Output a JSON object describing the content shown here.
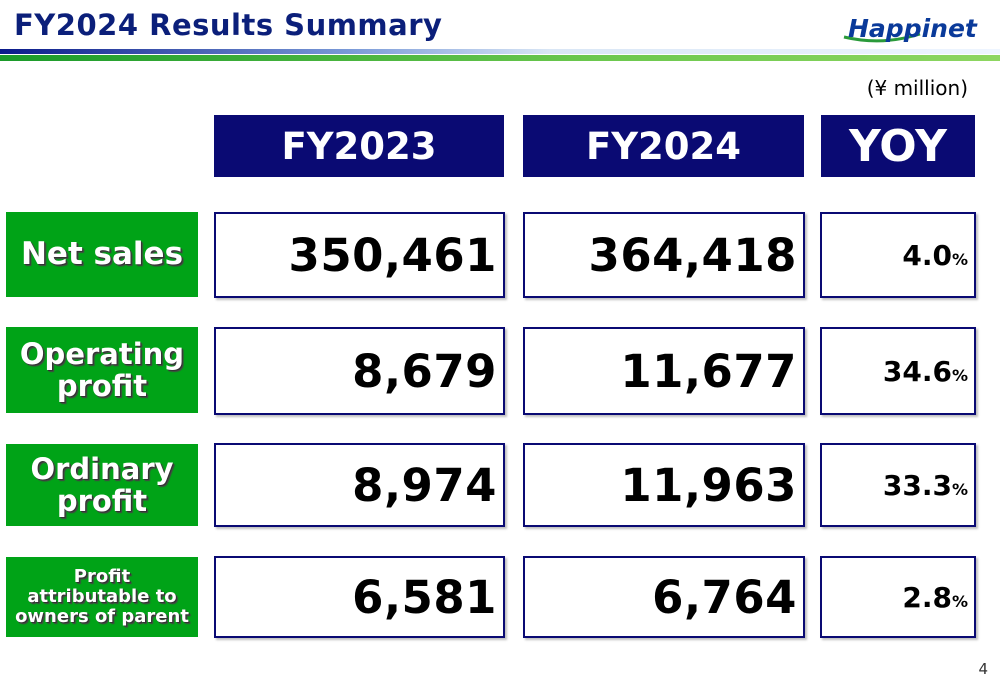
{
  "slide": {
    "title": "FY2024 Results Summary",
    "logo_text": "Happinet",
    "unit": "(¥ million)",
    "page_number": "4"
  },
  "columns": {
    "fy2023": "FY2023",
    "fy2024": "FY2024",
    "yoy": "YOY"
  },
  "rows": [
    {
      "label_lines": [
        "Net sales"
      ],
      "fy2023": "350,461",
      "fy2024": "364,418",
      "yoy": "4.0",
      "yoy_unit": "%"
    },
    {
      "label_lines": [
        "Operating",
        "profit"
      ],
      "fy2023": "8,679",
      "fy2024": "11,677",
      "yoy": "34.6",
      "yoy_unit": "%"
    },
    {
      "label_lines": [
        "Ordinary",
        "profit"
      ],
      "fy2023": "8,974",
      "fy2024": "11,963",
      "yoy": "33.3",
      "yoy_unit": "%"
    },
    {
      "label_lines": [
        "Profit",
        "attributable to",
        "owners of parent"
      ],
      "fy2023": "6,581",
      "fy2024": "6,764",
      "yoy": "2.8",
      "yoy_unit": "%"
    }
  ],
  "colors": {
    "header_navy": "#0a0a73",
    "label_green": "#00a317",
    "title_blue": "#0b1f7a"
  }
}
